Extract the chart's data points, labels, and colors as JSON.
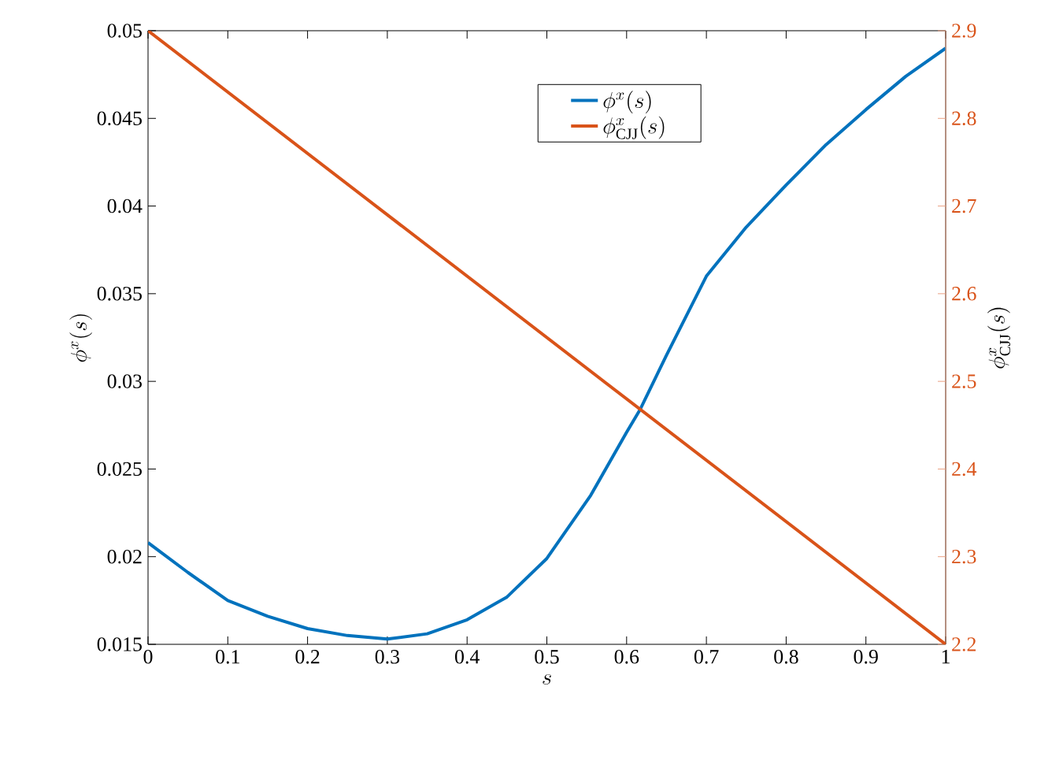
{
  "chart_data": {
    "type": "line",
    "xlabel": "s",
    "ylabel": "\\phi^{x}(s)",
    "y2label": "\\phi^{x}_{\\mathrm{CJJ}}(s)",
    "series": [
      {
        "name": "\\phi^{x}(s)",
        "color": "#0072bd",
        "x": [
          0,
          0.05,
          0.1,
          0.15,
          0.2,
          0.25,
          0.3,
          0.35,
          0.4,
          0.45,
          0.5,
          0.555,
          0.6,
          0.617,
          0.65,
          0.7,
          0.75,
          0.8,
          0.85,
          0.9,
          0.95,
          1
        ],
        "values": [
          0.0208,
          0.0191,
          0.0175,
          0.0166,
          0.0159,
          0.0155,
          0.0153,
          0.0156,
          0.0164,
          0.0177,
          0.0199,
          0.0235,
          0.0271,
          0.0284,
          0.0315,
          0.036,
          0.0388,
          0.0412,
          0.0435,
          0.0455,
          0.0474,
          0.049
        ]
      },
      {
        "name": "\\phi^{x}_{\\mathrm{CJJ}}(s)",
        "color": "#d95319",
        "axis": "y2",
        "x": [
          0,
          1
        ],
        "values": [
          2.9,
          2.2
        ]
      }
    ],
    "xlim": [
      0,
      1
    ],
    "xticks": [
      0,
      0.1,
      0.2,
      0.3,
      0.4,
      0.5,
      0.6,
      0.7,
      0.8,
      0.9,
      1
    ],
    "ylim": [
      0.015,
      0.05
    ],
    "yticks": [
      0.015,
      0.02,
      0.025,
      0.03,
      0.035,
      0.04,
      0.045,
      0.05
    ],
    "y2lim": [
      2.2,
      2.9
    ],
    "y2ticks": [
      2.2,
      2.3,
      2.4,
      2.5,
      2.6,
      2.7,
      2.8,
      2.9
    ],
    "legend": "top",
    "grid": false,
    "marker": "none",
    "line_style": "solid"
  }
}
